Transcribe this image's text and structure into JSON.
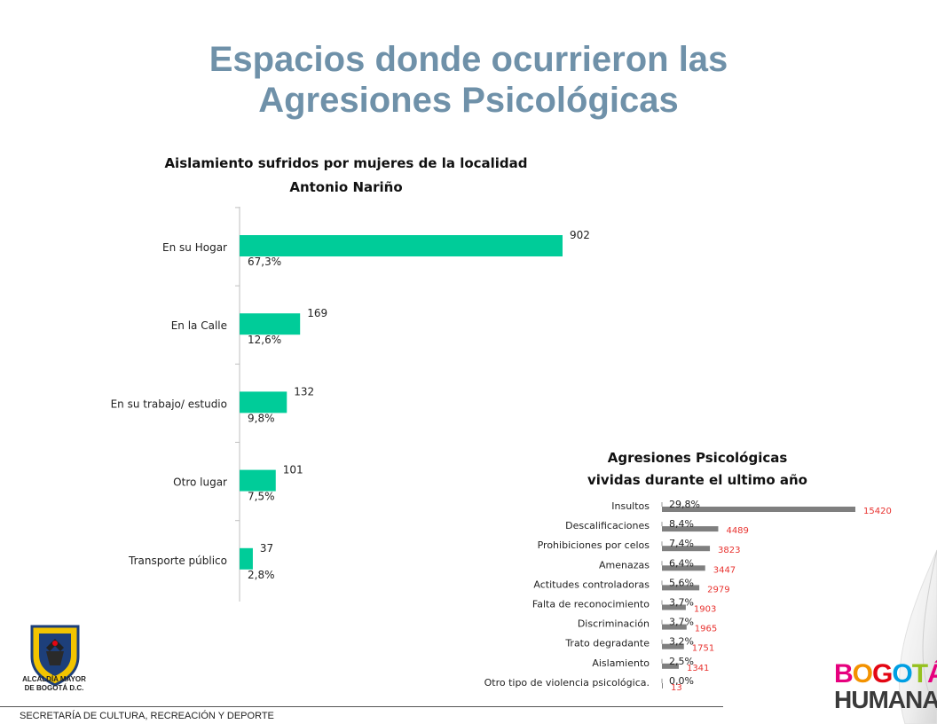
{
  "slide": {
    "title_line1": "Espacios donde ocurrieron las",
    "title_line2": "Agresiones Psicológicas",
    "footer": "SECRETARÍA DE CULTURA, RECREACIÓN Y DEPORTE",
    "emblem_line1": "ALCALDÍA MAYOR",
    "emblem_line2": "DE BOGOTÁ D.C.",
    "brand_line1": [
      "B",
      "O",
      "G",
      "O",
      "T",
      "Á"
    ],
    "brand_line1_colors": [
      "#e6007e",
      "#f39200",
      "#e30613",
      "#009fe3",
      "#95c11f",
      "#e6007e"
    ],
    "brand_line2": "HUMANA"
  },
  "chart_data": [
    {
      "type": "bar",
      "orientation": "horizontal",
      "title_line1": "Aislamiento  sufridos por mujeres de la localidad",
      "title_line2": "Antonio Nariño",
      "categories": [
        "En su Hogar",
        "En la Calle",
        "En su trabajo/ estudio",
        "Otro lugar",
        "Transporte público"
      ],
      "values": [
        902,
        169,
        132,
        101,
        37
      ],
      "percent_labels": [
        "67,3%",
        "12,6%",
        "9,8%",
        "7,5%",
        "2,8%"
      ],
      "xlim": [
        0,
        1100
      ],
      "bar_color": "#00cc99",
      "grid": false
    },
    {
      "type": "bar",
      "orientation": "horizontal",
      "title_line1": "Agresiones Psicológicas",
      "title_line2": "vividas durante el ultimo año",
      "categories": [
        "Insultos",
        "Descalificaciones",
        "Prohibiciones por celos",
        "Amenazas",
        "Actitudes controladoras",
        "Falta de reconocimiento",
        "Discriminación",
        "Trato degradante",
        "Aislamiento",
        "Otro tipo de violencia psicológica."
      ],
      "values": [
        15420,
        4489,
        3823,
        3447,
        2979,
        1903,
        1965,
        1751,
        1341,
        13
      ],
      "percent_labels": [
        "29,8%",
        "8,4%",
        "7,4%",
        "6,4%",
        "5,6%",
        "3,7%",
        "3,7%",
        "3,2%",
        "2,5%",
        "0,0%"
      ],
      "xlim": [
        0,
        16000
      ],
      "bar_color": "#7f7f7f",
      "value_label_color": "#e8322f",
      "grid": false
    }
  ]
}
